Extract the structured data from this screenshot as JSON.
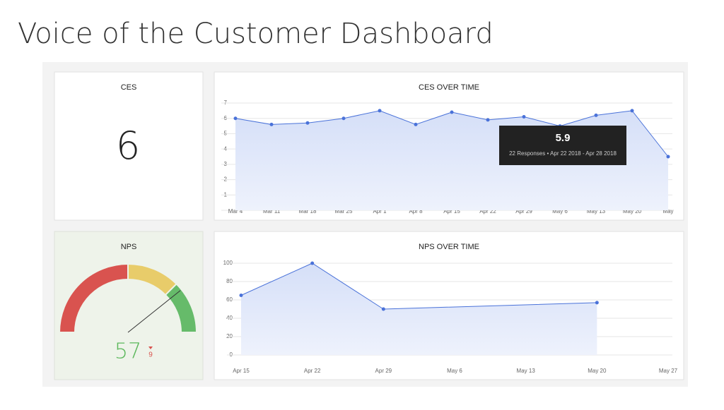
{
  "title": "Voice of the Customer Dashboard",
  "ces_card": {
    "title": "CES",
    "value": 6
  },
  "nps_card": {
    "title": "NPS",
    "value": 57,
    "change": 9,
    "gauge": {
      "min": -100,
      "max": 100,
      "bands": [
        {
          "from": -100,
          "to": 0,
          "color": "#d9534f"
        },
        {
          "from": 0,
          "to": 50,
          "color": "#e8cc6a"
        },
        {
          "from": 50,
          "to": 100,
          "color": "#66bb6a"
        }
      ]
    }
  },
  "chart_data": [
    {
      "type": "line",
      "title": "CES OVER TIME",
      "categories": [
        "Mar 4",
        "Mar 11",
        "Mar 18",
        "Mar 25",
        "Apr 1",
        "Apr 8",
        "Apr 15",
        "Apr 22",
        "Apr 29",
        "May 6",
        "May 13",
        "May 20",
        "May"
      ],
      "values": [
        6.0,
        5.6,
        5.7,
        6.0,
        6.5,
        5.6,
        6.4,
        5.9,
        6.1,
        5.5,
        6.2,
        6.5,
        3.5
      ],
      "color": "#4a72d9",
      "ylim": [
        0,
        7
      ],
      "yticks": [
        1,
        2,
        3,
        4,
        5,
        6,
        7
      ],
      "grid": true,
      "tooltip": {
        "value": 5.9,
        "text": "22 Responses • Apr 22 2018 - Apr 28 2018"
      }
    },
    {
      "type": "line",
      "title": "NPS OVER TIME",
      "xticks": [
        "Apr 15",
        "Apr 22",
        "Apr 29",
        "May 6",
        "May 13",
        "May 20",
        "May 27"
      ],
      "x": [
        "Apr 15",
        "Apr 22",
        "Apr 29",
        "May 20"
      ],
      "values": [
        65,
        100,
        50,
        57
      ],
      "color": "#4a72d9",
      "ylim": [
        0,
        100
      ],
      "yticks": [
        0,
        20,
        40,
        60,
        80,
        100
      ],
      "grid": true
    }
  ]
}
